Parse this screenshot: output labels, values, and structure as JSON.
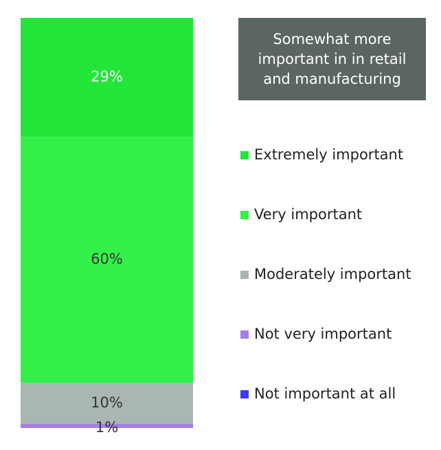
{
  "chart_data": {
    "type": "bar",
    "stacked": true,
    "annotation": "Somewhat more important in in retail and manufacturing",
    "series": [
      {
        "name": "Extremely important",
        "color": "#22e63a",
        "values": [
          29
        ],
        "value_labels": [
          "29%"
        ]
      },
      {
        "name": "Very important",
        "color": "#34f04b",
        "values": [
          60
        ],
        "value_labels": [
          "60%"
        ]
      },
      {
        "name": "Moderately important",
        "color": "#a9b6b3",
        "values": [
          10
        ],
        "value_labels": [
          "10%"
        ]
      },
      {
        "name": "Not very important",
        "color": "#a77de8",
        "values": [
          1
        ],
        "value_labels": [
          "1%"
        ]
      },
      {
        "name": "Not important at all",
        "color": "#3b3bea",
        "values": [
          0
        ],
        "value_labels": [
          null
        ]
      }
    ]
  }
}
